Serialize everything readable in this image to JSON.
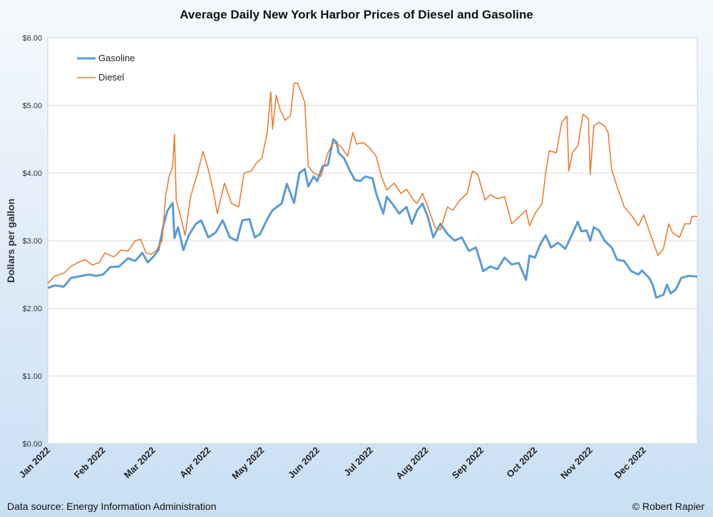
{
  "chart_data": {
    "type": "line",
    "title": "Average Daily New York Harbor Prices of Diesel and Gasoline",
    "ylabel": "Dollars per gallon",
    "xlabel": "",
    "ylim": [
      0,
      6
    ],
    "y_ticks": [
      "$0.00",
      "$1.00",
      "$2.00",
      "$3.00",
      "$4.00",
      "$5.00",
      "$6.00"
    ],
    "x_ticks": [
      "Jan 2022",
      "Feb 2022",
      "Mar 2022",
      "Apr 2022",
      "May 2022",
      "Jun 2022",
      "Jul 2022",
      "Aug 2022",
      "Sep 2022",
      "Oct 2022",
      "Nov 2022",
      "Dec 2022"
    ],
    "x_range": [
      "2022-01-01",
      "2022-12-31"
    ],
    "grid": "horizontal",
    "legend_position": "top-left",
    "series": [
      {
        "name": "Gasoline",
        "color": "#5b9bd5",
        "points": [
          [
            "2022-01-01",
            2.3
          ],
          [
            "2022-01-05",
            2.34
          ],
          [
            "2022-01-10",
            2.32
          ],
          [
            "2022-01-14",
            2.45
          ],
          [
            "2022-01-18",
            2.47
          ],
          [
            "2022-01-24",
            2.5
          ],
          [
            "2022-01-28",
            2.48
          ],
          [
            "2022-02-01",
            2.5
          ],
          [
            "2022-02-05",
            2.61
          ],
          [
            "2022-02-10",
            2.62
          ],
          [
            "2022-02-15",
            2.74
          ],
          [
            "2022-02-19",
            2.7
          ],
          [
            "2022-02-23",
            2.82
          ],
          [
            "2022-02-26",
            2.68
          ],
          [
            "2022-03-01",
            2.76
          ],
          [
            "2022-03-04",
            2.86
          ],
          [
            "2022-03-07",
            3.25
          ],
          [
            "2022-03-09",
            3.44
          ],
          [
            "2022-03-12",
            3.56
          ],
          [
            "2022-03-13",
            3.04
          ],
          [
            "2022-03-15",
            3.2
          ],
          [
            "2022-03-18",
            2.86
          ],
          [
            "2022-03-21",
            3.08
          ],
          [
            "2022-03-25",
            3.25
          ],
          [
            "2022-03-28",
            3.3
          ],
          [
            "2022-04-01",
            3.05
          ],
          [
            "2022-04-05",
            3.12
          ],
          [
            "2022-04-09",
            3.3
          ],
          [
            "2022-04-13",
            3.05
          ],
          [
            "2022-04-17",
            3.0
          ],
          [
            "2022-04-20",
            3.3
          ],
          [
            "2022-04-24",
            3.32
          ],
          [
            "2022-04-27",
            3.05
          ],
          [
            "2022-04-30",
            3.1
          ],
          [
            "2022-05-04",
            3.32
          ],
          [
            "2022-05-07",
            3.45
          ],
          [
            "2022-05-12",
            3.55
          ],
          [
            "2022-05-15",
            3.84
          ],
          [
            "2022-05-19",
            3.56
          ],
          [
            "2022-05-22",
            4.0
          ],
          [
            "2022-05-25",
            4.06
          ],
          [
            "2022-05-27",
            3.8
          ],
          [
            "2022-05-30",
            3.95
          ],
          [
            "2022-06-01",
            3.88
          ],
          [
            "2022-06-04",
            4.1
          ],
          [
            "2022-06-07",
            4.12
          ],
          [
            "2022-06-10",
            4.5
          ],
          [
            "2022-06-12",
            4.45
          ],
          [
            "2022-06-13",
            4.3
          ],
          [
            "2022-06-16",
            4.22
          ],
          [
            "2022-06-19",
            4.05
          ],
          [
            "2022-06-22",
            3.9
          ],
          [
            "2022-06-25",
            3.88
          ],
          [
            "2022-06-28",
            3.95
          ],
          [
            "2022-07-02",
            3.92
          ],
          [
            "2022-07-04",
            3.7
          ],
          [
            "2022-07-08",
            3.4
          ],
          [
            "2022-07-10",
            3.65
          ],
          [
            "2022-07-13",
            3.55
          ],
          [
            "2022-07-17",
            3.4
          ],
          [
            "2022-07-21",
            3.5
          ],
          [
            "2022-07-24",
            3.25
          ],
          [
            "2022-07-27",
            3.45
          ],
          [
            "2022-07-30",
            3.55
          ],
          [
            "2022-08-02",
            3.35
          ],
          [
            "2022-08-05",
            3.05
          ],
          [
            "2022-08-09",
            3.25
          ],
          [
            "2022-08-13",
            3.1
          ],
          [
            "2022-08-17",
            3.0
          ],
          [
            "2022-08-21",
            3.05
          ],
          [
            "2022-08-25",
            2.85
          ],
          [
            "2022-08-29",
            2.9
          ],
          [
            "2022-09-02",
            2.55
          ],
          [
            "2022-09-06",
            2.62
          ],
          [
            "2022-09-10",
            2.58
          ],
          [
            "2022-09-14",
            2.75
          ],
          [
            "2022-09-18",
            2.65
          ],
          [
            "2022-09-22",
            2.67
          ],
          [
            "2022-09-26",
            2.42
          ],
          [
            "2022-09-28",
            2.78
          ],
          [
            "2022-10-01",
            2.75
          ],
          [
            "2022-10-04",
            2.95
          ],
          [
            "2022-10-07",
            3.08
          ],
          [
            "2022-10-10",
            2.9
          ],
          [
            "2022-10-14",
            2.97
          ],
          [
            "2022-10-18",
            2.88
          ],
          [
            "2022-10-22",
            3.1
          ],
          [
            "2022-10-25",
            3.28
          ],
          [
            "2022-10-27",
            3.14
          ],
          [
            "2022-10-30",
            3.15
          ],
          [
            "2022-11-01",
            3.0
          ],
          [
            "2022-11-03",
            3.2
          ],
          [
            "2022-11-06",
            3.15
          ],
          [
            "2022-11-09",
            3.0
          ],
          [
            "2022-11-13",
            2.9
          ],
          [
            "2022-11-16",
            2.72
          ],
          [
            "2022-11-20",
            2.7
          ],
          [
            "2022-11-24",
            2.55
          ],
          [
            "2022-11-28",
            2.5
          ],
          [
            "2022-11-30",
            2.56
          ],
          [
            "2022-12-04",
            2.45
          ],
          [
            "2022-12-06",
            2.35
          ],
          [
            "2022-12-08",
            2.16
          ],
          [
            "2022-12-12",
            2.2
          ],
          [
            "2022-12-14",
            2.35
          ],
          [
            "2022-12-16",
            2.22
          ],
          [
            "2022-12-19",
            2.28
          ],
          [
            "2022-12-22",
            2.45
          ],
          [
            "2022-12-26",
            2.48
          ],
          [
            "2022-12-31",
            2.47
          ]
        ]
      },
      {
        "name": "Diesel",
        "color": "#ed7d31",
        "points": [
          [
            "2022-01-01",
            2.37
          ],
          [
            "2022-01-05",
            2.48
          ],
          [
            "2022-01-10",
            2.52
          ],
          [
            "2022-01-14",
            2.62
          ],
          [
            "2022-01-18",
            2.68
          ],
          [
            "2022-01-22",
            2.72
          ],
          [
            "2022-01-26",
            2.64
          ],
          [
            "2022-01-30",
            2.68
          ],
          [
            "2022-02-02",
            2.82
          ],
          [
            "2022-02-07",
            2.76
          ],
          [
            "2022-02-11",
            2.86
          ],
          [
            "2022-02-15",
            2.85
          ],
          [
            "2022-02-19",
            3.0
          ],
          [
            "2022-02-22",
            3.02
          ],
          [
            "2022-02-25",
            2.82
          ],
          [
            "2022-02-28",
            2.8
          ],
          [
            "2022-03-03",
            2.86
          ],
          [
            "2022-03-06",
            3.0
          ],
          [
            "2022-03-08",
            3.65
          ],
          [
            "2022-03-10",
            3.95
          ],
          [
            "2022-03-12",
            4.1
          ],
          [
            "2022-03-13",
            4.57
          ],
          [
            "2022-03-14",
            3.6
          ],
          [
            "2022-03-16",
            3.4
          ],
          [
            "2022-03-19",
            3.08
          ],
          [
            "2022-03-22",
            3.65
          ],
          [
            "2022-03-26",
            4.0
          ],
          [
            "2022-03-29",
            4.32
          ],
          [
            "2022-04-01",
            4.05
          ],
          [
            "2022-04-04",
            3.7
          ],
          [
            "2022-04-06",
            3.4
          ],
          [
            "2022-04-10",
            3.85
          ],
          [
            "2022-04-14",
            3.55
          ],
          [
            "2022-04-18",
            3.5
          ],
          [
            "2022-04-21",
            4.0
          ],
          [
            "2022-04-25",
            4.03
          ],
          [
            "2022-04-28",
            4.15
          ],
          [
            "2022-05-01",
            4.22
          ],
          [
            "2022-05-04",
            4.6
          ],
          [
            "2022-05-06",
            5.2
          ],
          [
            "2022-05-07",
            4.65
          ],
          [
            "2022-05-09",
            5.15
          ],
          [
            "2022-05-11",
            4.95
          ],
          [
            "2022-05-14",
            4.78
          ],
          [
            "2022-05-17",
            4.85
          ],
          [
            "2022-05-19",
            5.33
          ],
          [
            "2022-05-21",
            5.33
          ],
          [
            "2022-05-25",
            5.05
          ],
          [
            "2022-05-27",
            4.1
          ],
          [
            "2022-05-30",
            4.0
          ],
          [
            "2022-06-03",
            3.95
          ],
          [
            "2022-06-07",
            4.3
          ],
          [
            "2022-06-10",
            4.45
          ],
          [
            "2022-06-14",
            4.4
          ],
          [
            "2022-06-18",
            4.25
          ],
          [
            "2022-06-21",
            4.6
          ],
          [
            "2022-06-23",
            4.43
          ],
          [
            "2022-06-27",
            4.45
          ],
          [
            "2022-06-30",
            4.38
          ],
          [
            "2022-07-04",
            4.25
          ],
          [
            "2022-07-07",
            3.95
          ],
          [
            "2022-07-10",
            3.75
          ],
          [
            "2022-07-14",
            3.85
          ],
          [
            "2022-07-18",
            3.7
          ],
          [
            "2022-07-21",
            3.76
          ],
          [
            "2022-07-25",
            3.6
          ],
          [
            "2022-07-27",
            3.55
          ],
          [
            "2022-07-30",
            3.7
          ],
          [
            "2022-08-02",
            3.5
          ],
          [
            "2022-08-06",
            3.2
          ],
          [
            "2022-08-09",
            3.16
          ],
          [
            "2022-08-13",
            3.5
          ],
          [
            "2022-08-16",
            3.45
          ],
          [
            "2022-08-20",
            3.6
          ],
          [
            "2022-08-24",
            3.7
          ],
          [
            "2022-08-27",
            4.03
          ],
          [
            "2022-08-30",
            3.98
          ],
          [
            "2022-09-03",
            3.6
          ],
          [
            "2022-09-06",
            3.68
          ],
          [
            "2022-09-10",
            3.62
          ],
          [
            "2022-09-14",
            3.65
          ],
          [
            "2022-09-18",
            3.25
          ],
          [
            "2022-09-22",
            3.35
          ],
          [
            "2022-09-26",
            3.45
          ],
          [
            "2022-09-28",
            3.22
          ],
          [
            "2022-10-01",
            3.4
          ],
          [
            "2022-10-05",
            3.55
          ],
          [
            "2022-10-07",
            4.0
          ],
          [
            "2022-10-09",
            4.33
          ],
          [
            "2022-10-13",
            4.3
          ],
          [
            "2022-10-16",
            4.75
          ],
          [
            "2022-10-19",
            4.84
          ],
          [
            "2022-10-20",
            4.03
          ],
          [
            "2022-10-22",
            4.3
          ],
          [
            "2022-10-25",
            4.4
          ],
          [
            "2022-10-28",
            4.87
          ],
          [
            "2022-10-31",
            4.8
          ],
          [
            "2022-11-01",
            3.98
          ],
          [
            "2022-11-03",
            4.7
          ],
          [
            "2022-11-06",
            4.75
          ],
          [
            "2022-11-09",
            4.7
          ],
          [
            "2022-11-11",
            4.6
          ],
          [
            "2022-11-13",
            4.05
          ],
          [
            "2022-11-16",
            3.8
          ],
          [
            "2022-11-20",
            3.5
          ],
          [
            "2022-11-24",
            3.38
          ],
          [
            "2022-11-28",
            3.22
          ],
          [
            "2022-12-01",
            3.38
          ],
          [
            "2022-12-04",
            3.15
          ],
          [
            "2022-12-06",
            3.0
          ],
          [
            "2022-12-09",
            2.78
          ],
          [
            "2022-12-12",
            2.88
          ],
          [
            "2022-12-15",
            3.25
          ],
          [
            "2022-12-17",
            3.12
          ],
          [
            "2022-12-21",
            3.05
          ],
          [
            "2022-12-24",
            3.25
          ],
          [
            "2022-12-27",
            3.25
          ],
          [
            "2022-12-28",
            3.36
          ],
          [
            "2022-12-31",
            3.36
          ]
        ]
      }
    ]
  },
  "footer": {
    "source": "Data source: Energy Information Administration",
    "credit": "© Robert Rapier"
  }
}
